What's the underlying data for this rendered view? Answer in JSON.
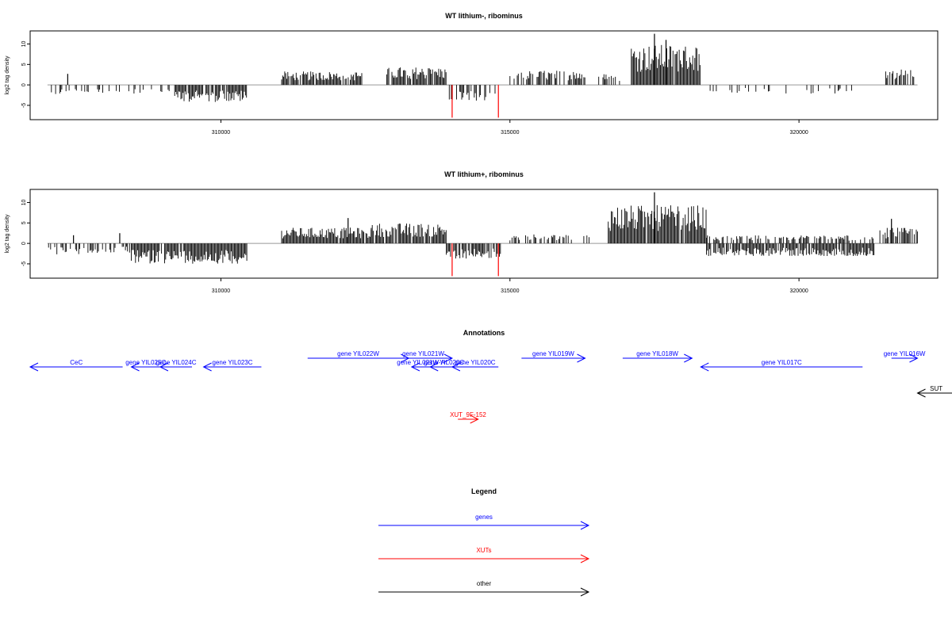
{
  "chart_data": [
    {
      "type": "bar",
      "title": "WT lithium-, ribominus",
      "ylabel": "log2 tag density",
      "xlim": [
        306700,
        322400
      ],
      "ylim": [
        -8.5,
        13.2
      ],
      "yticks": [
        -5,
        0,
        5,
        10
      ],
      "xticks": [
        310000,
        315000,
        320000
      ],
      "grid": false,
      "segments": [
        {
          "from": 307050,
          "to": 307650,
          "sign": -1,
          "amp": 2.2,
          "density": 0.35,
          "color": "#000000"
        },
        {
          "from": 307650,
          "to": 308600,
          "sign": -1,
          "amp": 2.0,
          "density": 0.25,
          "color": "#000000"
        },
        {
          "from": 308600,
          "to": 309200,
          "sign": -1,
          "amp": 2.0,
          "density": 0.3,
          "color": "#000000"
        },
        {
          "from": 309200,
          "to": 310450,
          "sign": -1,
          "amp": 3.8,
          "density": 0.9,
          "color": "#000000"
        },
        {
          "from": 311050,
          "to": 312450,
          "sign": 1,
          "amp": 3.0,
          "density": 0.85,
          "color": "#000000"
        },
        {
          "from": 312850,
          "to": 313900,
          "sign": 1,
          "amp": 4.0,
          "density": 0.9,
          "color": "#000000"
        },
        {
          "from": 313950,
          "to": 314800,
          "sign": -1,
          "amp": 3.5,
          "density": 0.5,
          "color": "#000000"
        },
        {
          "from": 315000,
          "to": 316300,
          "sign": 1,
          "amp": 3.2,
          "density": 0.55,
          "color": "#000000"
        },
        {
          "from": 316500,
          "to": 316900,
          "sign": 1,
          "amp": 2.5,
          "density": 0.3,
          "color": "#000000"
        },
        {
          "from": 317100,
          "to": 318300,
          "sign": 1,
          "amp": 9.0,
          "density": 0.95,
          "color": "#000000"
        },
        {
          "from": 318300,
          "to": 320100,
          "sign": -1,
          "amp": 2.0,
          "density": 0.2,
          "color": "#000000"
        },
        {
          "from": 320100,
          "to": 321200,
          "sign": -1,
          "amp": 2.0,
          "density": 0.15,
          "color": "#000000"
        },
        {
          "from": 321500,
          "to": 322000,
          "sign": 1,
          "amp": 3.5,
          "density": 0.7,
          "color": "#000000"
        }
      ],
      "spikes": [
        {
          "x": 307350,
          "value": 2.7,
          "color": "#000000"
        },
        {
          "x": 314000,
          "value": -8.0,
          "color": "#ff0000"
        },
        {
          "x": 314800,
          "value": -8.0,
          "color": "#ff0000"
        },
        {
          "x": 317500,
          "value": 12.5,
          "color": "#000000"
        },
        {
          "x": 317700,
          "value": 11.0,
          "color": "#000000"
        }
      ]
    },
    {
      "type": "bar",
      "title": "WT lithium+, ribominus",
      "ylabel": "log2 tag density",
      "xlim": [
        306700,
        322400
      ],
      "ylim": [
        -8.5,
        13.2
      ],
      "yticks": [
        -5,
        0,
        5,
        10
      ],
      "xticks": [
        310000,
        315000,
        320000
      ],
      "grid": false,
      "segments": [
        {
          "from": 307000,
          "to": 307700,
          "sign": -1,
          "amp": 2.5,
          "density": 0.4,
          "color": "#000000"
        },
        {
          "from": 307700,
          "to": 308450,
          "sign": -1,
          "amp": 2.2,
          "density": 0.35,
          "color": "#000000"
        },
        {
          "from": 308450,
          "to": 310450,
          "sign": -1,
          "amp": 4.5,
          "density": 0.95,
          "color": "#000000"
        },
        {
          "from": 311050,
          "to": 312600,
          "sign": 1,
          "amp": 3.5,
          "density": 0.95,
          "color": "#000000"
        },
        {
          "from": 312600,
          "to": 313900,
          "sign": 1,
          "amp": 4.5,
          "density": 0.9,
          "color": "#000000"
        },
        {
          "from": 313900,
          "to": 314850,
          "sign": -1,
          "amp": 3.5,
          "density": 0.85,
          "color": "#000000"
        },
        {
          "from": 315000,
          "to": 316400,
          "sign": 1,
          "amp": 2.0,
          "density": 0.4,
          "color": "#000000"
        },
        {
          "from": 316700,
          "to": 318400,
          "sign": 1,
          "amp": 8.5,
          "density": 0.95,
          "color": "#000000"
        },
        {
          "from": 318400,
          "to": 321300,
          "sign": -1,
          "amp": 2.8,
          "density": 0.9,
          "color": "#000000"
        },
        {
          "from": 318400,
          "to": 321300,
          "sign": 1,
          "amp": 1.8,
          "density": 0.5,
          "color": "#000000"
        },
        {
          "from": 321400,
          "to": 322050,
          "sign": 1,
          "amp": 3.5,
          "density": 0.8,
          "color": "#000000"
        }
      ],
      "spikes": [
        {
          "x": 307450,
          "value": 2.0,
          "color": "#000000"
        },
        {
          "x": 308250,
          "value": 2.5,
          "color": "#000000"
        },
        {
          "x": 312200,
          "value": 6.2,
          "color": "#000000"
        },
        {
          "x": 314000,
          "value": -8.0,
          "color": "#ff0000"
        },
        {
          "x": 314800,
          "value": -8.0,
          "color": "#ff0000"
        },
        {
          "x": 317500,
          "value": 12.5,
          "color": "#000000"
        },
        {
          "x": 321600,
          "value": 6.0,
          "color": "#000000"
        }
      ]
    }
  ],
  "annotations": {
    "title": "Annotations",
    "xlim": [
      306700,
      322400
    ],
    "features": [
      {
        "label": "CeC",
        "start": 306700,
        "end": 308300,
        "strand": "-",
        "row": 1,
        "kind": "gene"
      },
      {
        "label": "gene YIL025C",
        "start": 308450,
        "end": 308950,
        "strand": "-",
        "row": 1,
        "kind": "gene"
      },
      {
        "label": "gene YIL024C",
        "start": 308950,
        "end": 309500,
        "strand": "-",
        "row": 1,
        "kind": "gene"
      },
      {
        "label": "gene YIL023C",
        "start": 309700,
        "end": 310700,
        "strand": "-",
        "row": 1,
        "kind": "gene"
      },
      {
        "label": "gene YIL022W",
        "start": 311500,
        "end": 313250,
        "strand": "+",
        "row": 0,
        "kind": "gene"
      },
      {
        "label": "gene YIL021W",
        "start": 313000,
        "end": 314000,
        "strand": "+",
        "row": 0,
        "kind": "gene"
      },
      {
        "label": "gene YIL021W-A",
        "start": 313300,
        "end": 313620,
        "strand": "-",
        "row": 1,
        "kind": "gene"
      },
      {
        "label": "gene YIL020C",
        "start": 313620,
        "end": 314100,
        "strand": "-",
        "row": 1,
        "kind": "gene"
      },
      {
        "label": "gene YIL020C",
        "start": 314000,
        "end": 314800,
        "strand": "-",
        "row": 1,
        "kind": "gene"
      },
      {
        "label": "gene YIL019W",
        "start": 315200,
        "end": 316300,
        "strand": "+",
        "row": 0,
        "kind": "gene"
      },
      {
        "label": "gene YIL018W",
        "start": 316950,
        "end": 318150,
        "strand": "+",
        "row": 0,
        "kind": "gene"
      },
      {
        "label": "gene YIL017C",
        "start": 318300,
        "end": 321100,
        "strand": "-",
        "row": 1,
        "kind": "gene"
      },
      {
        "label": "gene YIL016W",
        "start": 321600,
        "end": 322050,
        "strand": "+",
        "row": 0,
        "kind": "gene"
      },
      {
        "label": "SUT",
        "start": 322050,
        "end": 322700,
        "strand": "-",
        "row": 4,
        "kind": "other"
      },
      {
        "label": "XUT_9F-152",
        "start": 314100,
        "end": 314450,
        "strand": "+",
        "row": 7,
        "kind": "xut"
      }
    ]
  },
  "legend": {
    "title": "Legend",
    "items": [
      {
        "label": "genes",
        "color": "#0000ff"
      },
      {
        "label": "XUTs",
        "color": "#ff0000"
      },
      {
        "label": "other",
        "color": "#000000"
      }
    ]
  },
  "colors": {
    "gene": "#0000ff",
    "xut": "#ff0000",
    "other": "#000000",
    "baseline": "#999999"
  }
}
